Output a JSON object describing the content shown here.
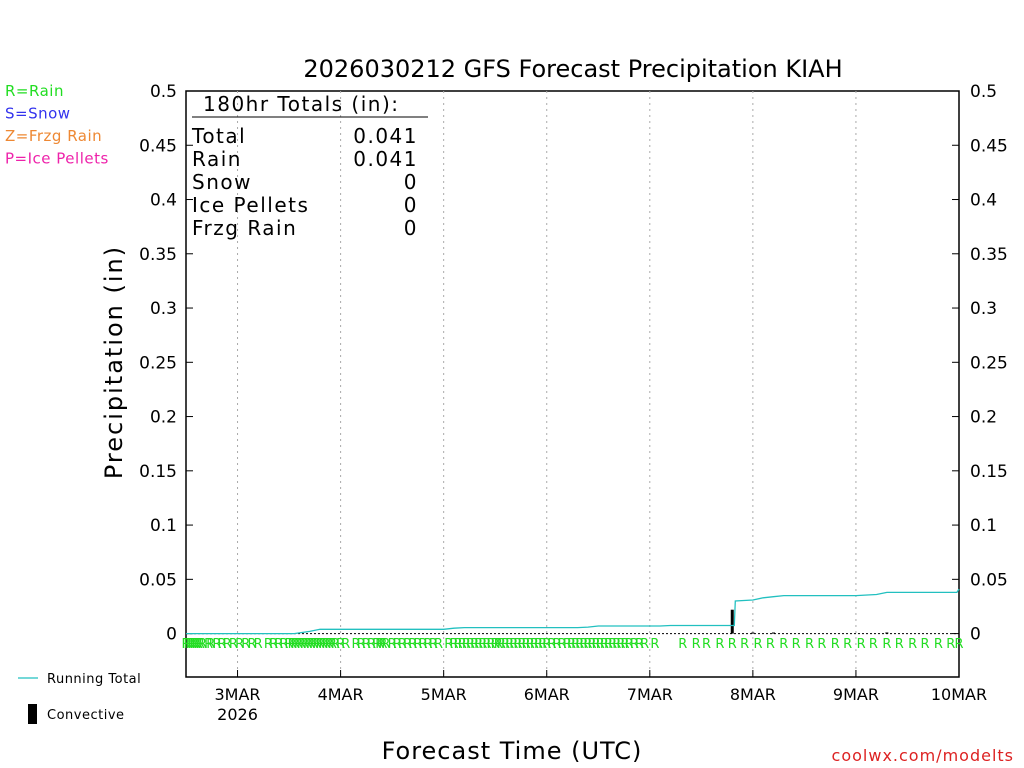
{
  "chart_data": {
    "type": "line",
    "title": "2026030212 GFS Forecast Precipitation KIAH",
    "xlabel": "Forecast Time (UTC)",
    "ylabel": "Precipitation (in)",
    "xlim_days": [
      0,
      7.5
    ],
    "ylim": [
      -0.04,
      0.5
    ],
    "y_ticks": [
      {
        "value": 0,
        "label": "0"
      },
      {
        "value": 0.05,
        "label": "0.05"
      },
      {
        "value": 0.1,
        "label": "0.1"
      },
      {
        "value": 0.15,
        "label": "0.15"
      },
      {
        "value": 0.2,
        "label": "0.2"
      },
      {
        "value": 0.25,
        "label": "0.25"
      },
      {
        "value": 0.3,
        "label": "0.3"
      },
      {
        "value": 0.35,
        "label": "0.35"
      },
      {
        "value": 0.4,
        "label": "0.4"
      },
      {
        "value": 0.45,
        "label": "0.45"
      },
      {
        "value": 0.5,
        "label": "0.5"
      }
    ],
    "x_ticks": [
      {
        "day": 0.5,
        "label": "3MAR",
        "sublabel": "2026"
      },
      {
        "day": 1.5,
        "label": "4MAR",
        "sublabel": ""
      },
      {
        "day": 2.5,
        "label": "5MAR",
        "sublabel": ""
      },
      {
        "day": 3.5,
        "label": "6MAR",
        "sublabel": ""
      },
      {
        "day": 4.5,
        "label": "7MAR",
        "sublabel": ""
      },
      {
        "day": 5.5,
        "label": "8MAR",
        "sublabel": ""
      },
      {
        "day": 6.5,
        "label": "9MAR",
        "sublabel": ""
      },
      {
        "day": 7.5,
        "label": "10MAR",
        "sublabel": ""
      }
    ],
    "totals_box": {
      "heading": "180hr Totals (in):",
      "rows": [
        {
          "label": "Total",
          "value": "0.041"
        },
        {
          "label": "Rain",
          "value": "0.041"
        },
        {
          "label": "Snow",
          "value": "0"
        },
        {
          "label": "Ice Pellets",
          "value": "0"
        },
        {
          "label": "Frzg Rain",
          "value": "0"
        }
      ]
    },
    "precip_type_legend": [
      {
        "label": "R=Rain",
        "color": "#22dd22"
      },
      {
        "label": "S=Snow",
        "color": "#3333ee"
      },
      {
        "label": "Z=Frzg Rain",
        "color": "#ee8833"
      },
      {
        "label": "P=Ice Pellets",
        "color": "#ee22aa"
      }
    ],
    "series_legend": [
      {
        "label": "Running Total",
        "color": "#22c0c0",
        "kind": "line"
      },
      {
        "label": "Convective",
        "color": "#000000",
        "kind": "bar"
      }
    ],
    "running_total": {
      "color": "#22c0c0",
      "days": [
        0,
        1.05,
        1.2,
        1.3,
        2.5,
        2.6,
        2.7,
        3.8,
        3.9,
        4.0,
        4.6,
        4.7,
        4.85,
        5.32,
        5.33,
        5.5,
        5.6,
        5.7,
        5.8,
        6.5,
        6.7,
        6.8,
        7.0,
        7.48,
        7.5
      ],
      "values": [
        0,
        0,
        0.002,
        0.004,
        0.004,
        0.005,
        0.0055,
        0.0055,
        0.006,
        0.007,
        0.007,
        0.0075,
        0.0075,
        0.0075,
        0.03,
        0.031,
        0.033,
        0.034,
        0.035,
        0.035,
        0.036,
        0.038,
        0.038,
        0.038,
        0.041
      ]
    },
    "convective_bars": [
      {
        "day": 5.3,
        "value": 0.022
      },
      {
        "day": 5.5,
        "value": 0.001
      },
      {
        "day": 5.7,
        "value": 0.001
      },
      {
        "day": 6.8,
        "value": 0.001
      }
    ],
    "precip_type_markers": {
      "letter": "R",
      "color": "#22dd22",
      "days": [
        0,
        0.02,
        0.04,
        0.06,
        0.08,
        0.1,
        0.12,
        0.14,
        0.16,
        0.22,
        0.24,
        0.3,
        0.35,
        0.4,
        0.46,
        0.52,
        0.58,
        0.64,
        0.7,
        0.8,
        0.85,
        0.9,
        0.95,
        1.0,
        1.03,
        1.06,
        1.09,
        1.12,
        1.15,
        1.18,
        1.21,
        1.24,
        1.27,
        1.3,
        1.33,
        1.36,
        1.39,
        1.42,
        1.45,
        1.5,
        1.55,
        1.65,
        1.7,
        1.75,
        1.8,
        1.85,
        1.88,
        1.91,
        1.94,
        2.0,
        2.05,
        2.1,
        2.15,
        2.2,
        2.25,
        2.3,
        2.35,
        2.4,
        2.45,
        2.55,
        2.6,
        2.64,
        2.68,
        2.72,
        2.76,
        2.8,
        2.84,
        2.88,
        2.92,
        2.96,
        3.0,
        3.03,
        3.06,
        3.1,
        3.14,
        3.18,
        3.22,
        3.26,
        3.3,
        3.34,
        3.38,
        3.42,
        3.46,
        3.5,
        3.55,
        3.6,
        3.65,
        3.7,
        3.74,
        3.78,
        3.82,
        3.86,
        3.9,
        3.94,
        3.98,
        4.02,
        4.06,
        4.1,
        4.14,
        4.18,
        4.22,
        4.26,
        4.3,
        4.35,
        4.4,
        4.45,
        4.55,
        4.82,
        4.95,
        5.05,
        5.18,
        5.3,
        5.42,
        5.55,
        5.67,
        5.8,
        5.92,
        6.05,
        6.17,
        6.3,
        6.42,
        6.55,
        6.67,
        6.8,
        6.92,
        7.05,
        7.17,
        7.3,
        7.42,
        7.5
      ]
    },
    "credit": "coolwx.com/modelts"
  }
}
